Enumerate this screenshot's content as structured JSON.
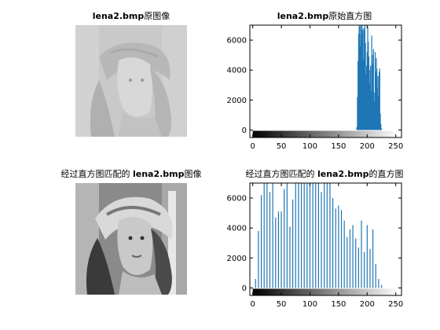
{
  "panels": {
    "original_image_title": {
      "bold": "lena2.bmp",
      "rest": "原图像"
    },
    "original_hist_title": {
      "bold": "lena2.bmp",
      "rest": "原始直方图"
    },
    "matched_image_title": {
      "pre": "经过直方图匹配的 ",
      "bold": "lena2.bmp",
      "rest": "图像"
    },
    "matched_hist_title": {
      "pre": "经过直方图匹配的 ",
      "bold": "lena2.bmp",
      "rest": "的直方图"
    }
  },
  "colors": {
    "bar": "#1f77b4",
    "axis": "#000000"
  },
  "chart_data": [
    {
      "type": "bar",
      "title": "lena2.bmp原始直方图",
      "xlim": [
        -5,
        260
      ],
      "ylim": [
        -500,
        7000
      ],
      "xticks": [
        0,
        50,
        100,
        150,
        200,
        250
      ],
      "yticks": [
        0,
        2000,
        4000,
        6000
      ],
      "colorbar": "grayscale 0-255",
      "x": [
        182,
        183,
        184,
        185,
        186,
        187,
        188,
        189,
        190,
        191,
        192,
        193,
        194,
        195,
        196,
        197,
        198,
        199,
        200,
        201,
        202,
        203,
        204,
        205,
        206,
        207,
        208,
        209,
        210,
        211,
        212,
        213,
        214,
        215,
        216,
        217,
        218,
        219,
        220,
        221,
        222,
        223,
        224,
        225
      ],
      "values": [
        200,
        2200,
        4600,
        6400,
        7000,
        6900,
        5600,
        7000,
        6400,
        7000,
        6700,
        4700,
        6800,
        6600,
        7000,
        5800,
        3700,
        4300,
        5200,
        6900,
        5900,
        4900,
        3100,
        4000,
        4300,
        2600,
        6300,
        5000,
        4400,
        5400,
        2500,
        1900,
        5200,
        3900,
        4800,
        4100,
        2800,
        3600,
        2300,
        3900,
        4100,
        1100,
        400,
        100
      ]
    },
    {
      "type": "bar",
      "title": "经过直方图匹配的 lena2.bmp的直方图",
      "xlim": [
        -5,
        260
      ],
      "ylim": [
        -500,
        7000
      ],
      "xticks": [
        0,
        50,
        100,
        150,
        200,
        250
      ],
      "yticks": [
        0,
        2000,
        4000,
        6000
      ],
      "colorbar": "grayscale 0-255",
      "x": [
        5,
        10,
        15,
        20,
        25,
        30,
        35,
        40,
        45,
        50,
        55,
        60,
        65,
        70,
        75,
        80,
        85,
        90,
        95,
        100,
        105,
        110,
        115,
        120,
        125,
        130,
        135,
        140,
        145,
        150,
        155,
        160,
        165,
        170,
        175,
        180,
        185,
        190,
        195,
        200,
        205,
        210,
        215,
        220,
        225
      ],
      "values": [
        600,
        3800,
        6200,
        7000,
        7000,
        6400,
        7000,
        4700,
        5100,
        5100,
        6600,
        7000,
        4100,
        5900,
        7000,
        7000,
        7000,
        7000,
        7000,
        7000,
        7000,
        7000,
        7000,
        6400,
        7000,
        7000,
        7000,
        6000,
        5300,
        5500,
        5200,
        4500,
        3400,
        3900,
        4200,
        3300,
        2700,
        4500,
        2400,
        4200,
        2600,
        3900,
        1600,
        600,
        200
      ]
    }
  ]
}
